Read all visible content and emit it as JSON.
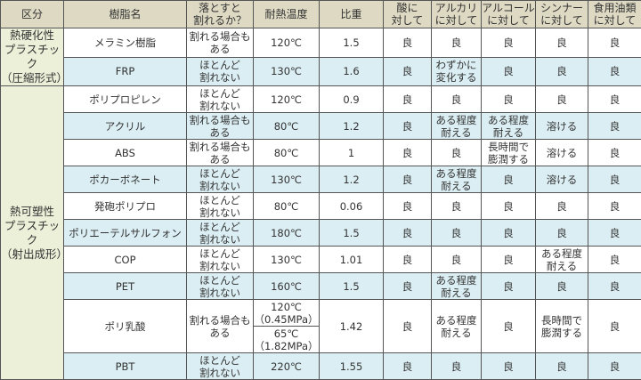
{
  "table": {
    "headers": [
      "区分",
      "樹脂名",
      "落とすと\n割れるか？",
      "耐熱温度",
      "比重",
      "酸に\n対して",
      "アルカリ\nに対して",
      "アルコール\nに対して",
      "シンナー\nに対して",
      "食用油類\nに対して"
    ],
    "groups": [
      {
        "category": "熱硬化性\nプラスチック\n（圧縮形式）",
        "rows": [
          {
            "name": "メラミン樹脂",
            "breakage": "割れる場合も\nある",
            "heat": "120℃",
            "gravity": "1.5",
            "acid": "良",
            "alkali": "良",
            "alcohol": "良",
            "thinner": "良",
            "oil": "良"
          },
          {
            "name": "FRP",
            "breakage": "ほとんど\n割れない",
            "heat": "130℃",
            "gravity": "1.6",
            "acid": "良",
            "alkali": "わずかに\n変化する",
            "alcohol": "良",
            "thinner": "良",
            "oil": "良"
          }
        ]
      },
      {
        "category": "熱可塑性\nプラスチック\n（射出成形）",
        "rows": [
          {
            "name": "ポリプロピレン",
            "breakage": "ほとんど\n割れない",
            "heat": "120℃",
            "gravity": "0.9",
            "acid": "良",
            "alkali": "良",
            "alcohol": "良",
            "thinner": "良",
            "oil": "良"
          },
          {
            "name": "アクリル",
            "breakage": "割れる場合も\nある",
            "heat": "80℃",
            "gravity": "1.2",
            "acid": "良",
            "alkali": "ある程度\n耐える",
            "alcohol": "ある程度\n耐える",
            "thinner": "溶ける",
            "oil": "良"
          },
          {
            "name": "ABS",
            "breakage": "割れる場合も\nある",
            "heat": "80℃",
            "gravity": "1",
            "acid": "良",
            "alkali": "良",
            "alcohol": "長時間で\n膨潤する",
            "thinner": "溶ける",
            "oil": "良"
          },
          {
            "name": "ポカーボネート",
            "breakage": "ほとんど\n割れない",
            "heat": "130℃",
            "gravity": "1.2",
            "acid": "良",
            "alkali": "ある程度\n耐える",
            "alcohol": "良",
            "thinner": "溶ける",
            "oil": "良"
          },
          {
            "name": "発砲ポリプロ",
            "breakage": "ほとんど\n割れない",
            "heat": "80℃",
            "gravity": "0.06",
            "acid": "良",
            "alkali": "良",
            "alcohol": "良",
            "thinner": "良",
            "oil": "良"
          },
          {
            "name": "ポリエーテルサルフォン",
            "breakage": "ほとんど\n割れない",
            "heat": "180℃",
            "gravity": "1.5",
            "acid": "良",
            "alkali": "良",
            "alcohol": "良",
            "thinner": "良",
            "oil": "良"
          },
          {
            "name": "COP",
            "breakage": "ほとんど\n割れない",
            "heat": "130℃",
            "gravity": "1.01",
            "acid": "良",
            "alkali": "良",
            "alcohol": "良",
            "thinner": "ある程度\n耐える",
            "oil": "良"
          },
          {
            "name": "PET",
            "breakage": "ほとんど\n割れない",
            "heat": "160℃",
            "gravity": "1.5",
            "acid": "良",
            "alkali": "ある程度\n耐える",
            "alcohol": "良",
            "thinner": "良",
            "oil": "良"
          },
          {
            "name": "ポリ乳酸",
            "breakage": "割れる場合も\nある",
            "heat": [
              "120℃\n（0.45MPa）",
              "65℃\n（1.82MPa）"
            ],
            "gravity": "1.42",
            "acid": "良",
            "alkali": "ある程度\n耐える",
            "alcohol": "良",
            "thinner": "長時間で\n膨潤する",
            "oil": "良"
          },
          {
            "name": "PBT",
            "breakage": "ほとんど\n割れない",
            "heat": "220℃",
            "gravity": "1.55",
            "acid": "良",
            "alkali": "良",
            "alcohol": "良",
            "thinner": "良",
            "oil": "良"
          }
        ]
      }
    ]
  }
}
